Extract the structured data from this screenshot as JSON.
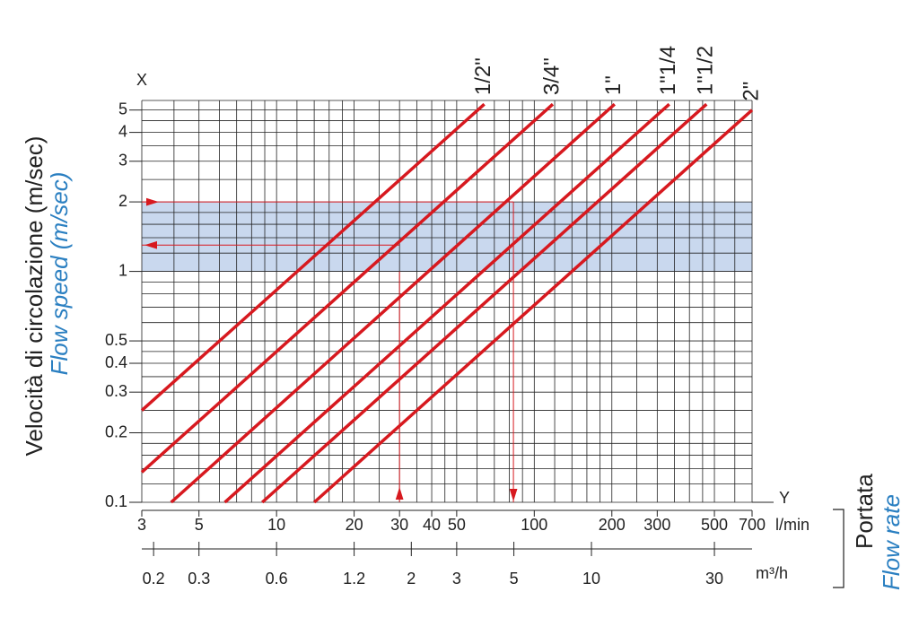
{
  "chart_data": {
    "type": "line",
    "y_title": "Velocità di circolazione (m/sec)",
    "y_subtitle": "Flow speed (m/sec)",
    "x_title": "Portata",
    "x_subtitle": "Flow rate",
    "y_axis_name": "X",
    "x_axis_name": "Y",
    "x_unit": "l/min",
    "x2_unit": "m³/h",
    "log_x": true,
    "log_y": true,
    "grid": true,
    "xlim": [
      3,
      700
    ],
    "ylim": [
      0.1,
      5.5
    ],
    "x2lim": [
      0.18,
      42
    ],
    "xticks": [
      3,
      5,
      10,
      20,
      30,
      40,
      50,
      100,
      200,
      300,
      500,
      700
    ],
    "x2ticks": [
      0.2,
      0.3,
      0.6,
      1.2,
      2,
      3,
      5,
      10,
      30
    ],
    "yticks": [
      0.1,
      0.2,
      0.3,
      0.4,
      0.5,
      1,
      2,
      3,
      4,
      5
    ],
    "xgrid": [
      3,
      4,
      5,
      6,
      7,
      8,
      9,
      10,
      12,
      14,
      16,
      18,
      20,
      25,
      30,
      35,
      40,
      45,
      50,
      60,
      70,
      80,
      90,
      100,
      120,
      140,
      160,
      180,
      200,
      250,
      300,
      350,
      400,
      450,
      500,
      600,
      700
    ],
    "ygrid": [
      0.1,
      0.12,
      0.14,
      0.16,
      0.18,
      0.2,
      0.25,
      0.3,
      0.35,
      0.4,
      0.45,
      0.5,
      0.6,
      0.7,
      0.8,
      0.9,
      1,
      1.2,
      1.4,
      1.6,
      1.8,
      2,
      2.5,
      3,
      3.5,
      4,
      4.5,
      5,
      5.5
    ],
    "highlight_band": [
      1,
      2
    ],
    "band_color": "#c9d8ee",
    "guide_x": [
      30,
      83
    ],
    "guide_y": [
      2,
      1.3
    ],
    "guide_color": "#d7191f",
    "series": [
      {
        "name": "1/2\"",
        "color": "#d7191f",
        "x": [
          3,
          64
        ],
        "values": [
          0.25,
          5.3
        ]
      },
      {
        "name": "3/4\"",
        "color": "#d7191f",
        "x": [
          3,
          118
        ],
        "values": [
          0.135,
          5.3
        ]
      },
      {
        "name": "1\"",
        "color": "#d7191f",
        "x": [
          3.9,
          205
        ],
        "values": [
          0.1,
          5.3
        ]
      },
      {
        "name": "1\"1/4",
        "color": "#d7191f",
        "x": [
          6.3,
          334
        ],
        "values": [
          0.1,
          5.3
        ]
      },
      {
        "name": "1\"1/2",
        "color": "#d7191f",
        "x": [
          8.8,
          466
        ],
        "values": [
          0.1,
          5.3
        ]
      },
      {
        "name": "2\"",
        "color": "#d7191f",
        "x": [
          14,
          700
        ],
        "values": [
          0.1,
          5.0
        ]
      }
    ]
  }
}
